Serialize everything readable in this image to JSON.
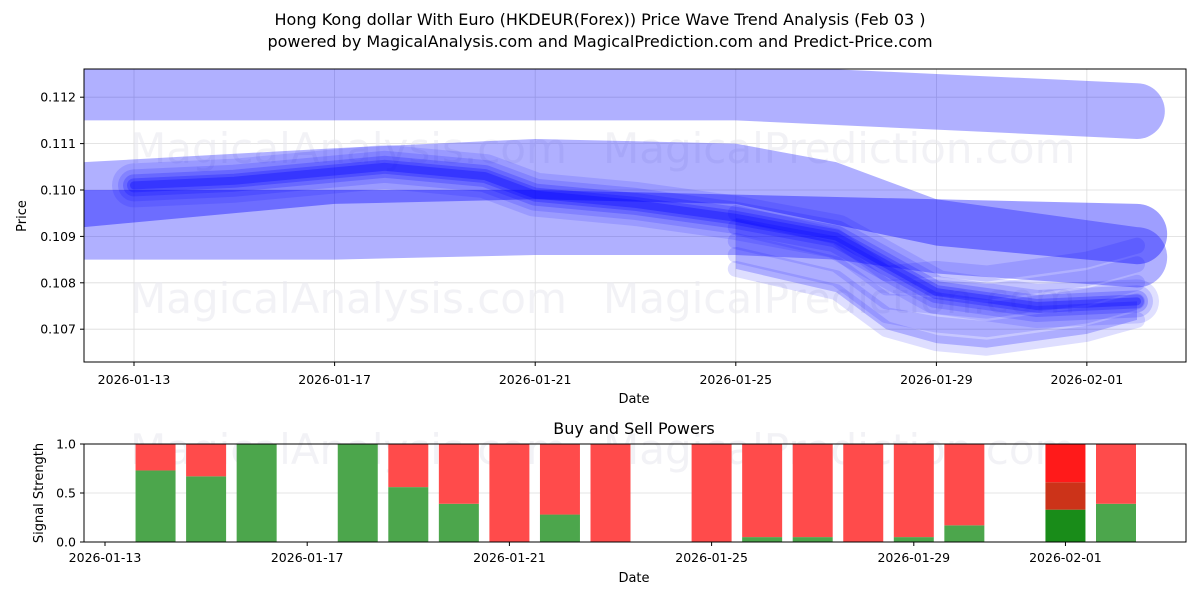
{
  "header": {
    "title": "Hong Kong dollar With Euro (HKDEUR(Forex)) Price Wave Trend Analysis (Feb 03 )",
    "subtitle": "powered by MagicalAnalysis.com and MagicalPrediction.com and Predict-Price.com"
  },
  "watermarks": [
    "MagicalAnalysis.com",
    "MagicalPrediction.com"
  ],
  "colors": {
    "band": "#0000ff",
    "buy": "#4ca64c",
    "sell": "#ff4b4b",
    "buy_strong": "#198c19",
    "sell_mid": "#cc3319",
    "sell_strong": "#ff1a1a"
  },
  "chart_data": [
    {
      "type": "area",
      "title": "Price Wave Trend Analysis",
      "xlabel": "Date",
      "ylabel": "Price",
      "x_ticks": [
        "2026-01-13",
        "2026-01-17",
        "2026-01-21",
        "2026-01-25",
        "2026-01-29",
        "2026-02-01"
      ],
      "y_ticks": [
        "0.107",
        "0.108",
        "0.109",
        "0.110",
        "0.111",
        "0.112"
      ],
      "ylim": [
        0.10625,
        0.11265
      ],
      "grid": true,
      "series": [
        {
          "name": "upper band",
          "x": [
            "2026-01-12",
            "2026-01-17",
            "2026-01-21",
            "2026-01-25",
            "2026-01-29",
            "2026-02-02"
          ],
          "low": [
            0.1115,
            0.1115,
            0.1115,
            0.1115,
            0.1113,
            0.1111
          ],
          "high": [
            0.1127,
            0.1127,
            0.1127,
            0.1127,
            0.1125,
            0.1123
          ]
        },
        {
          "name": "middle band",
          "x": [
            "2026-01-12",
            "2026-01-17",
            "2026-01-21",
            "2026-01-25",
            "2026-01-27",
            "2026-01-29",
            "2026-02-02"
          ],
          "low": [
            0.1085,
            0.1085,
            0.1086,
            0.1086,
            0.1085,
            0.1082,
            0.1079
          ],
          "high": [
            0.1106,
            0.1109,
            0.1111,
            0.111,
            0.1106,
            0.1098,
            0.1092
          ]
        },
        {
          "name": "lower band",
          "x": [
            "2026-01-12",
            "2026-01-17",
            "2026-01-21",
            "2026-01-25",
            "2026-01-29",
            "2026-02-02"
          ],
          "low": [
            0.1092,
            0.1097,
            0.1098,
            0.1097,
            0.1088,
            0.1084
          ],
          "high": [
            0.11,
            0.11,
            0.11,
            0.1099,
            0.1098,
            0.1097
          ]
        },
        {
          "name": "trend core",
          "x": [
            "2026-01-13",
            "2026-01-15",
            "2026-01-18",
            "2026-01-20",
            "2026-01-21",
            "2026-01-23",
            "2026-01-25",
            "2026-01-27",
            "2026-01-29",
            "2026-01-31",
            "2026-02-02"
          ],
          "values": [
            0.1101,
            0.1102,
            0.1105,
            0.1103,
            0.1099,
            0.1097,
            0.1094,
            0.109,
            0.1078,
            0.1075,
            0.1076
          ]
        },
        {
          "name": "forecast spread low",
          "x": [
            "2026-01-25",
            "2026-01-27",
            "2026-01-28",
            "2026-01-29",
            "2026-01-30",
            "2026-02-01",
            "2026-02-02"
          ],
          "values": [
            0.1083,
            0.1078,
            0.107,
            0.1067,
            0.1066,
            0.1069,
            0.1072
          ]
        }
      ]
    },
    {
      "type": "bar",
      "title": "Buy and Sell Powers",
      "xlabel": "Date",
      "ylabel": "Signal Strength",
      "ylim": [
        0.0,
        1.0
      ],
      "y_ticks": [
        "0.0",
        "0.5",
        "1.0"
      ],
      "x_ticks": [
        "2026-01-13",
        "2026-01-17",
        "2026-01-21",
        "2026-01-25",
        "2026-01-29",
        "2026-02-01"
      ],
      "grid": true,
      "categories": [
        "2026-01-14",
        "2026-01-15",
        "2026-01-16",
        "2026-01-18",
        "2026-01-19",
        "2026-01-20",
        "2026-01-21",
        "2026-01-22",
        "2026-01-23",
        "2026-01-25",
        "2026-01-26",
        "2026-01-27",
        "2026-01-28",
        "2026-01-29",
        "2026-01-30",
        "2026-02-01",
        "2026-02-02"
      ],
      "series": [
        {
          "name": "Buy",
          "values": [
            0.73,
            0.67,
            1.0,
            1.0,
            0.56,
            0.39,
            0.0,
            0.28,
            0.0,
            0.0,
            0.05,
            0.05,
            0.0,
            0.05,
            0.17,
            0.33,
            0.39
          ]
        },
        {
          "name": "Sell",
          "values": [
            0.27,
            0.33,
            0.0,
            0.0,
            0.44,
            0.61,
            1.0,
            0.72,
            1.0,
            1.0,
            0.95,
            0.95,
            1.0,
            0.95,
            0.83,
            0.67,
            0.61
          ]
        }
      ],
      "highlight": {
        "date": "2026-02-01",
        "segments": [
          {
            "from": 0.0,
            "to": 0.33,
            "color": "#198c19"
          },
          {
            "from": 0.33,
            "to": 0.61,
            "color": "#cc3319"
          },
          {
            "from": 0.61,
            "to": 1.0,
            "color": "#ff1a1a"
          }
        ]
      }
    }
  ]
}
